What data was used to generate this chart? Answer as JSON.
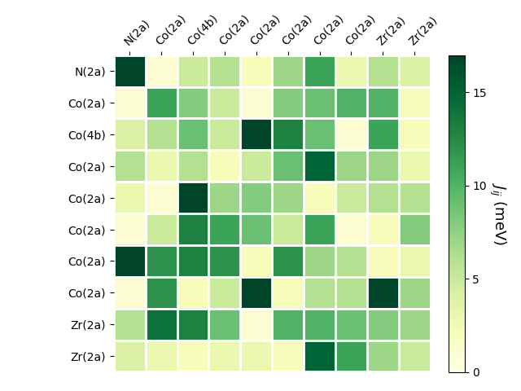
{
  "labels": [
    "N(2a)",
    "Co(2a)",
    "Co(4b)",
    "Co(2a)",
    "Co(2a)",
    "Co(2a)",
    "Co(2a)",
    "Co(2a)",
    "Zr(2a)",
    "Zr(2a)"
  ],
  "matrix": [
    [
      17,
      1,
      5,
      6,
      2,
      7,
      11,
      3,
      6,
      4
    ],
    [
      1,
      11,
      8,
      5,
      1,
      8,
      9,
      10,
      10,
      2
    ],
    [
      4,
      6,
      9,
      5,
      17,
      13,
      9,
      1,
      11,
      2
    ],
    [
      6,
      3,
      6,
      2,
      5,
      9,
      15,
      7,
      7,
      3
    ],
    [
      3,
      1,
      17,
      7,
      8,
      7,
      2,
      5,
      6,
      6
    ],
    [
      1,
      5,
      13,
      11,
      9,
      5,
      11,
      1,
      2,
      8
    ],
    [
      17,
      12,
      13,
      12,
      2,
      12,
      7,
      6,
      2,
      3
    ],
    [
      1,
      12,
      2,
      5,
      17,
      2,
      6,
      6,
      17,
      7
    ],
    [
      6,
      14,
      13,
      9,
      1,
      10,
      10,
      9,
      8,
      7
    ],
    [
      4,
      3,
      2,
      3,
      3,
      2,
      15,
      11,
      7,
      5
    ]
  ],
  "vmin": 0,
  "vmax": 17,
  "cbar_ticks": [
    0,
    5,
    10,
    15
  ],
  "cbar_label": "$J_{ij}$ (meV)",
  "cmap": "YlGn",
  "figsize": [
    6.4,
    4.8
  ],
  "dpi": 100,
  "tick_fontsize": 10,
  "cbar_fontsize": 13
}
